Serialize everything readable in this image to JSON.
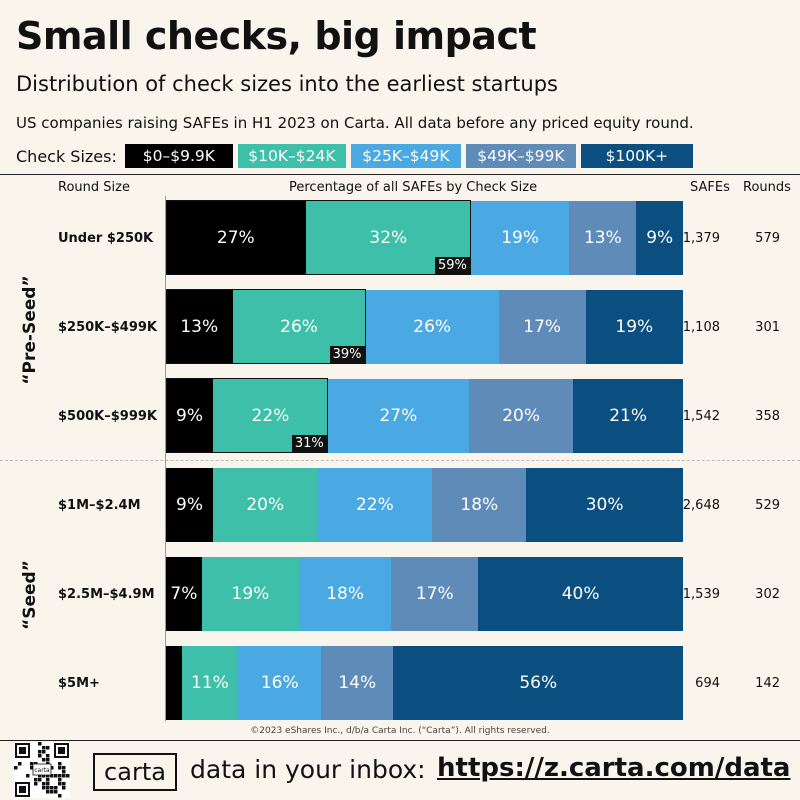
{
  "header": {
    "title": "Small checks, big impact",
    "subtitle": "Distribution of check sizes into the earliest startups",
    "note": "US companies raising SAFEs in H1 2023 on Carta. All data before any priced equity round."
  },
  "legend": {
    "label": "Check Sizes:",
    "items": [
      {
        "label": "$0–$9.9K",
        "color": "#000000"
      },
      {
        "label": "$10K–$24K",
        "color": "#3dbfa9"
      },
      {
        "label": "$25K–$49K",
        "color": "#4aa9e3"
      },
      {
        "label": "$49K–$99K",
        "color": "#5f8bb8"
      },
      {
        "label": "$100K+",
        "color": "#0a4f80"
      }
    ]
  },
  "columns": {
    "round_size": "Round Size",
    "percentage": "Percentage of all SAFEs by Check Size",
    "safes": "SAFEs",
    "rounds": "Rounds"
  },
  "groups": {
    "pre_seed": "“Pre-Seed”",
    "seed": "“Seed”"
  },
  "chart_data": {
    "type": "bar",
    "orientation": "horizontal",
    "stacked": true,
    "normalized": true,
    "title": "Small checks, big impact",
    "xlabel": "Percentage of all SAFEs by Check Size",
    "ylabel": "Round Size",
    "categories": [
      "Under $250K",
      "$250K–$499K",
      "$500K–$999K",
      "$1M–$2.4M",
      "$2.5M–$4.9M",
      "$5M+"
    ],
    "series": [
      {
        "name": "$0–$9.9K",
        "values": [
          27,
          13,
          9,
          9,
          7,
          3
        ],
        "labels": [
          "27%",
          "13%",
          "9%",
          "9%",
          "7%",
          ""
        ]
      },
      {
        "name": "$10K–$24K",
        "values": [
          32,
          26,
          22,
          20,
          19,
          11
        ],
        "labels": [
          "32%",
          "26%",
          "22%",
          "20%",
          "19%",
          "11%"
        ]
      },
      {
        "name": "$25K–$49K",
        "values": [
          19,
          26,
          27,
          22,
          18,
          16
        ],
        "labels": [
          "19%",
          "26%",
          "27%",
          "22%",
          "18%",
          "16%"
        ]
      },
      {
        "name": "$49K–$99K",
        "values": [
          13,
          17,
          20,
          18,
          17,
          14
        ],
        "labels": [
          "13%",
          "17%",
          "20%",
          "18%",
          "17%",
          "14%"
        ]
      },
      {
        "name": "$100K+",
        "values": [
          9,
          19,
          21,
          30,
          40,
          56
        ],
        "labels": [
          "9%",
          "19%",
          "21%",
          "30%",
          "40%",
          "56%"
        ]
      }
    ],
    "cumulative_under_25k": [
      {
        "value": 59,
        "label": "59%"
      },
      {
        "value": 39,
        "label": "39%"
      },
      {
        "value": 31,
        "label": "31%"
      }
    ],
    "safes": [
      "1,379",
      "1,108",
      "1,542",
      "2,648",
      "1,539",
      "694"
    ],
    "rounds": [
      "579",
      "301",
      "358",
      "529",
      "302",
      "142"
    ],
    "groups": [
      {
        "name": "“Pre-Seed”",
        "rows": [
          0,
          1,
          2
        ]
      },
      {
        "name": "“Seed”",
        "rows": [
          3,
          4,
          5
        ]
      }
    ]
  },
  "copyright": "©2023 eShares Inc., d/b/a Carta Inc. (“Carta”). All rights reserved.",
  "footer": {
    "logo": "carta",
    "qr_label": "carta",
    "text": "data in your inbox:",
    "link": "https://z.carta.com/data"
  }
}
